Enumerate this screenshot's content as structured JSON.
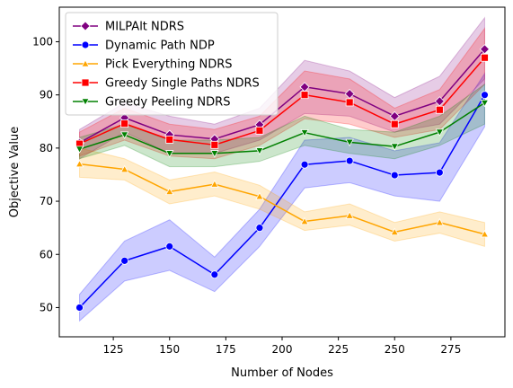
{
  "chart_data": {
    "type": "line",
    "xlabel": "Number of Nodes",
    "ylabel": "Objective Value",
    "xlim": [
      101,
      299
    ],
    "ylim": [
      44.5,
      106.5
    ],
    "xticks": [
      125,
      150,
      175,
      200,
      225,
      250,
      275
    ],
    "yticks": [
      50,
      60,
      70,
      80,
      90,
      100
    ],
    "grid": false,
    "legend_position": "upper-left",
    "x": [
      110,
      130,
      150,
      170,
      190,
      210,
      230,
      250,
      270,
      290
    ],
    "series": [
      {
        "name": "MILPAlt NDRS",
        "color": "#800080",
        "marker": "diamond",
        "values": [
          81.0,
          85.7,
          82.5,
          81.7,
          84.4,
          91.5,
          90.2,
          86.0,
          88.8,
          98.6
        ],
        "lower": [
          78.0,
          83.0,
          79.0,
          79.0,
          81.5,
          86.5,
          86.0,
          83.0,
          84.5,
          93.0
        ],
        "upper": [
          83.5,
          88.5,
          86.0,
          84.5,
          87.5,
          96.5,
          94.5,
          89.5,
          93.5,
          104.5
        ]
      },
      {
        "name": "Dynamic Path NDP",
        "color": "#0000ff",
        "marker": "circle",
        "values": [
          50.0,
          58.8,
          61.5,
          56.2,
          65.0,
          76.9,
          77.6,
          74.9,
          75.4,
          90.0
        ],
        "lower": [
          47.5,
          55.0,
          57.0,
          53.0,
          61.5,
          72.5,
          73.5,
          71.0,
          70.0,
          84.0
        ],
        "upper": [
          52.5,
          62.5,
          66.5,
          59.5,
          68.5,
          81.5,
          82.0,
          79.5,
          81.0,
          94.0
        ]
      },
      {
        "name": "Pick Everything NDRS",
        "color": "#ffa500",
        "marker": "triangle-up",
        "values": [
          77.0,
          76.0,
          71.8,
          73.2,
          70.9,
          66.2,
          67.3,
          64.2,
          66.0,
          63.8
        ],
        "lower": [
          74.5,
          74.0,
          69.5,
          71.0,
          68.5,
          64.5,
          65.5,
          62.5,
          64.0,
          61.5
        ],
        "upper": [
          80.0,
          78.0,
          74.0,
          75.5,
          73.0,
          68.0,
          69.5,
          66.0,
          68.0,
          66.0
        ]
      },
      {
        "name": "Greedy Single Paths NDRS",
        "color": "#ff0000",
        "marker": "square",
        "values": [
          80.8,
          84.6,
          81.6,
          80.6,
          83.3,
          90.0,
          88.6,
          84.5,
          87.2,
          97.0
        ],
        "lower": [
          78.5,
          81.5,
          78.5,
          78.0,
          80.5,
          85.5,
          84.5,
          82.0,
          83.5,
          92.0
        ],
        "upper": [
          83.0,
          87.5,
          84.5,
          83.5,
          86.0,
          94.5,
          93.0,
          87.5,
          91.0,
          102.5
        ]
      },
      {
        "name": "Greedy Peeling NDRS",
        "color": "#008000",
        "marker": "triangle-down",
        "values": [
          79.8,
          82.5,
          79.0,
          79.0,
          79.5,
          82.9,
          81.1,
          80.3,
          83.0,
          88.5
        ],
        "lower": [
          78.0,
          80.5,
          76.5,
          76.5,
          77.5,
          80.5,
          79.0,
          78.0,
          80.5,
          84.5
        ],
        "upper": [
          82.0,
          84.5,
          81.5,
          81.5,
          82.0,
          86.0,
          83.5,
          83.0,
          86.0,
          92.0
        ]
      }
    ]
  }
}
